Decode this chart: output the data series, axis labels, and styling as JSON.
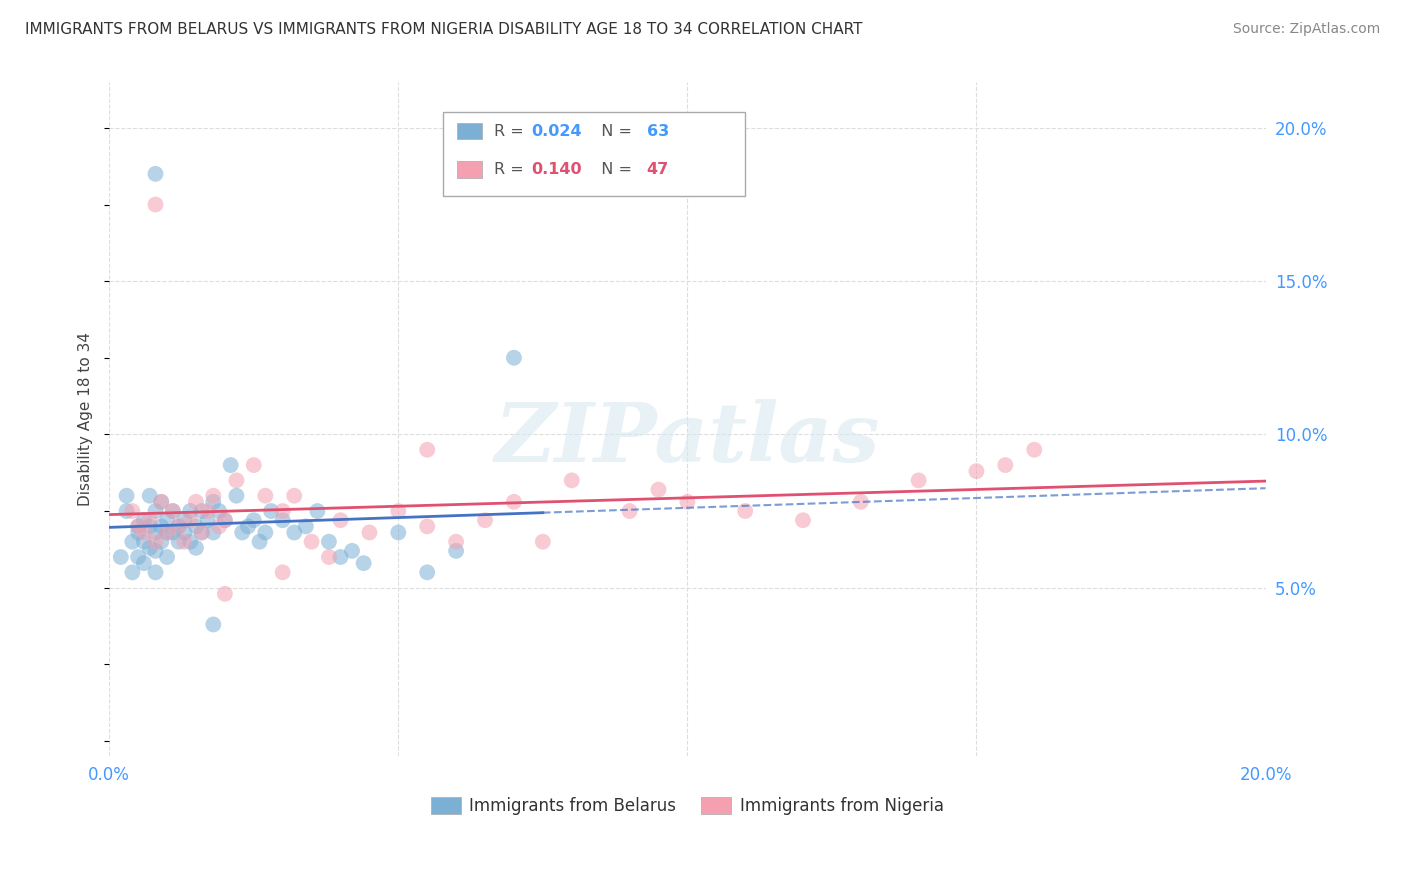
{
  "title": "IMMIGRANTS FROM BELARUS VS IMMIGRANTS FROM NIGERIA DISABILITY AGE 18 TO 34 CORRELATION CHART",
  "source": "Source: ZipAtlas.com",
  "ylabel": "Disability Age 18 to 34",
  "xlim": [
    0.0,
    0.2
  ],
  "ylim": [
    -0.005,
    0.215
  ],
  "xticks": [
    0.0,
    0.05,
    0.1,
    0.15,
    0.2
  ],
  "xticklabels": [
    "0.0%",
    "",
    "",
    "",
    "20.0%"
  ],
  "yticks_right": [
    0.05,
    0.1,
    0.15,
    0.2
  ],
  "yticklabels_right": [
    "5.0%",
    "10.0%",
    "15.0%",
    "20.0%"
  ],
  "belarus_color": "#7bafd4",
  "nigeria_color": "#f4a0b0",
  "belarus_line_color": "#4472c4",
  "nigeria_line_color": "#e05070",
  "belarus_r": 0.024,
  "belarus_n": 63,
  "nigeria_r": 0.14,
  "nigeria_n": 47,
  "watermark": "ZIPatlas",
  "legend_label_belarus": "Immigrants from Belarus",
  "legend_label_nigeria": "Immigrants from Nigeria",
  "belarus_scatter_x": [
    0.002,
    0.003,
    0.003,
    0.004,
    0.004,
    0.005,
    0.005,
    0.005,
    0.006,
    0.006,
    0.006,
    0.007,
    0.007,
    0.007,
    0.008,
    0.008,
    0.008,
    0.008,
    0.009,
    0.009,
    0.009,
    0.01,
    0.01,
    0.01,
    0.011,
    0.011,
    0.012,
    0.012,
    0.013,
    0.013,
    0.014,
    0.014,
    0.015,
    0.015,
    0.016,
    0.016,
    0.017,
    0.018,
    0.018,
    0.019,
    0.02,
    0.021,
    0.022,
    0.023,
    0.024,
    0.025,
    0.026,
    0.027,
    0.028,
    0.03,
    0.032,
    0.034,
    0.036,
    0.038,
    0.04,
    0.042,
    0.044,
    0.05,
    0.055,
    0.06,
    0.008,
    0.07,
    0.018
  ],
  "belarus_scatter_y": [
    0.06,
    0.075,
    0.08,
    0.065,
    0.055,
    0.07,
    0.06,
    0.068,
    0.072,
    0.065,
    0.058,
    0.08,
    0.07,
    0.063,
    0.075,
    0.068,
    0.062,
    0.055,
    0.078,
    0.07,
    0.065,
    0.072,
    0.068,
    0.06,
    0.075,
    0.068,
    0.07,
    0.065,
    0.072,
    0.068,
    0.075,
    0.065,
    0.07,
    0.063,
    0.075,
    0.068,
    0.072,
    0.078,
    0.068,
    0.075,
    0.072,
    0.09,
    0.08,
    0.068,
    0.07,
    0.072,
    0.065,
    0.068,
    0.075,
    0.072,
    0.068,
    0.07,
    0.075,
    0.065,
    0.06,
    0.062,
    0.058,
    0.068,
    0.055,
    0.062,
    0.185,
    0.125,
    0.038
  ],
  "nigeria_scatter_x": [
    0.004,
    0.005,
    0.006,
    0.007,
    0.008,
    0.009,
    0.01,
    0.011,
    0.012,
    0.013,
    0.014,
    0.015,
    0.016,
    0.017,
    0.018,
    0.019,
    0.02,
    0.022,
    0.025,
    0.027,
    0.03,
    0.032,
    0.035,
    0.038,
    0.04,
    0.045,
    0.05,
    0.055,
    0.06,
    0.065,
    0.07,
    0.075,
    0.08,
    0.09,
    0.095,
    0.1,
    0.11,
    0.12,
    0.13,
    0.14,
    0.15,
    0.155,
    0.16,
    0.055,
    0.03,
    0.02,
    0.008
  ],
  "nigeria_scatter_y": [
    0.075,
    0.07,
    0.068,
    0.072,
    0.065,
    0.078,
    0.068,
    0.075,
    0.07,
    0.065,
    0.072,
    0.078,
    0.068,
    0.075,
    0.08,
    0.07,
    0.072,
    0.085,
    0.09,
    0.08,
    0.075,
    0.08,
    0.065,
    0.06,
    0.072,
    0.068,
    0.075,
    0.07,
    0.065,
    0.072,
    0.078,
    0.065,
    0.085,
    0.075,
    0.082,
    0.078,
    0.075,
    0.072,
    0.078,
    0.085,
    0.088,
    0.09,
    0.095,
    0.095,
    0.055,
    0.048,
    0.175
  ],
  "grid_color": "#dddddd",
  "title_fontsize": 11,
  "tick_fontsize": 12,
  "ylabel_fontsize": 11
}
